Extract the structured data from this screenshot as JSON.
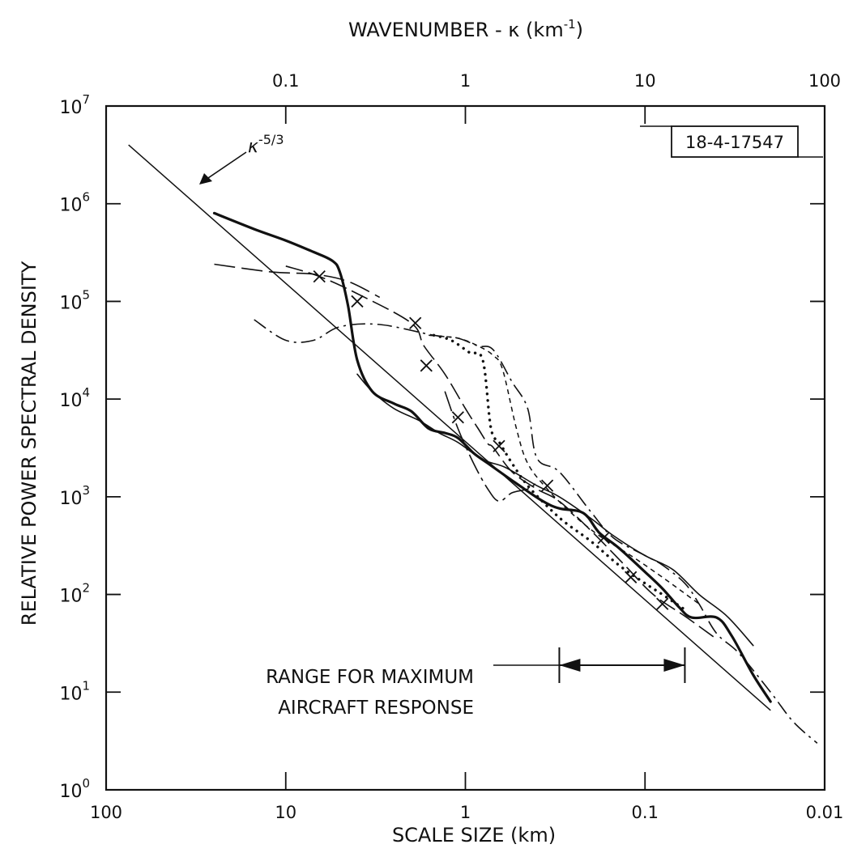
{
  "chart_data": {
    "type": "line",
    "title": "",
    "x_top_label": "WAVENUMBER - κ (km⁻¹)",
    "x_top_label_parts": {
      "main": "WAVENUMBER - κ (km",
      "sup": "-1",
      "close": ")"
    },
    "x_top_ticks": [
      "0.1",
      "1",
      "10",
      "100"
    ],
    "x_top_tick_values": [
      0.1,
      1,
      10,
      100
    ],
    "xlabel": "SCALE SIZE (km)",
    "x_bottom_ticks": [
      "100",
      "10",
      "1",
      "0.1",
      "0.01"
    ],
    "x_bottom_tick_values": [
      100,
      10,
      1,
      0.1,
      0.01
    ],
    "ylabel": "RELATIVE POWER SPECTRAL DENSITY",
    "y_ticks": [
      {
        "base": "10",
        "exp": "0"
      },
      {
        "base": "10",
        "exp": "1"
      },
      {
        "base": "10",
        "exp": "2"
      },
      {
        "base": "10",
        "exp": "3"
      },
      {
        "base": "10",
        "exp": "4"
      },
      {
        "base": "10",
        "exp": "5"
      },
      {
        "base": "10",
        "exp": "6"
      },
      {
        "base": "10",
        "exp": "7"
      }
    ],
    "x_scale": "log",
    "y_scale": "log",
    "xlim_km": [
      100,
      0.01
    ],
    "ylim": [
      1,
      10000000
    ],
    "figure_id": "18-4-17547",
    "annotations": {
      "reference_line": {
        "base": "κ",
        "exp": "-5/3",
        "from": [
          75,
          4000000
        ],
        "to": [
          0.02,
          6.5
        ]
      },
      "range": {
        "line1": "RANGE FOR MAXIMUM",
        "line2": "AIRCRAFT RESPONSE",
        "from_km": 0.3,
        "to_km": 0.06
      }
    },
    "series": [
      {
        "style": "solid-heavy",
        "points": [
          [
            25,
            800000
          ],
          [
            15,
            550000
          ],
          [
            10,
            420000
          ],
          [
            7,
            320000
          ],
          [
            5.5,
            260000
          ],
          [
            5,
            200000
          ],
          [
            4.5,
            90000
          ],
          [
            4,
            25000
          ],
          [
            3.3,
            12000
          ],
          [
            2.5,
            9000
          ],
          [
            2,
            7500
          ],
          [
            1.6,
            5000
          ],
          [
            1.3,
            4500
          ],
          [
            1.1,
            4000
          ],
          [
            0.9,
            2800
          ],
          [
            0.75,
            2200
          ],
          [
            0.5,
            1300
          ],
          [
            0.37,
            900
          ],
          [
            0.3,
            760
          ],
          [
            0.22,
            680
          ],
          [
            0.18,
            430
          ],
          [
            0.14,
            300
          ],
          [
            0.1,
            170
          ],
          [
            0.08,
            115
          ],
          [
            0.065,
            75
          ],
          [
            0.055,
            58
          ],
          [
            0.04,
            58
          ],
          [
            0.033,
            38
          ],
          [
            0.025,
            15
          ],
          [
            0.02,
            8
          ]
        ]
      },
      {
        "style": "solid-thin",
        "points": [
          [
            4,
            18000
          ],
          [
            3.3,
            12000
          ],
          [
            2.5,
            8000
          ],
          [
            1.8,
            6000
          ],
          [
            1.4,
            4500
          ],
          [
            1.1,
            3600
          ],
          [
            0.8,
            2400
          ],
          [
            0.6,
            2000
          ],
          [
            0.4,
            1300
          ],
          [
            0.3,
            1000
          ],
          [
            0.2,
            600
          ],
          [
            0.15,
            400
          ],
          [
            0.1,
            250
          ],
          [
            0.07,
            180
          ],
          [
            0.05,
            100
          ],
          [
            0.035,
            60
          ],
          [
            0.025,
            30
          ]
        ]
      },
      {
        "style": "dash-x",
        "marker": "x",
        "points": [
          [
            10,
            230000
          ],
          [
            6.5,
            180000
          ],
          [
            4,
            120000
          ],
          [
            2,
            60000
          ],
          [
            1.7,
            35000
          ],
          [
            1.3,
            18000
          ],
          [
            1,
            8000
          ],
          [
            0.85,
            5000
          ],
          [
            0.75,
            3500
          ],
          [
            0.7,
            3200
          ],
          [
            0.55,
            1800
          ],
          [
            0.4,
            1200
          ],
          [
            0.3,
            900
          ],
          [
            0.2,
            450
          ],
          [
            0.13,
            200
          ],
          [
            0.09,
            100
          ],
          [
            0.06,
            60
          ],
          [
            0.04,
            35
          ]
        ],
        "markers": [
          [
            6.5,
            180000
          ],
          [
            4,
            100000
          ],
          [
            1.9,
            60000
          ],
          [
            1.65,
            22000
          ],
          [
            1.1,
            6500
          ],
          [
            0.65,
            3300
          ],
          [
            0.35,
            1300
          ],
          [
            0.17,
            380
          ],
          [
            0.12,
            150
          ],
          [
            0.08,
            80
          ]
        ]
      },
      {
        "style": "dotted",
        "points": [
          [
            1.5,
            45000
          ],
          [
            1.2,
            40000
          ],
          [
            0.95,
            30000
          ],
          [
            0.8,
            25000
          ],
          [
            0.72,
            5000
          ],
          [
            0.64,
            3500
          ],
          [
            0.55,
            2200
          ],
          [
            0.45,
            1300
          ],
          [
            0.35,
            800
          ],
          [
            0.28,
            550
          ],
          [
            0.2,
            350
          ],
          [
            0.14,
            200
          ],
          [
            0.1,
            130
          ],
          [
            0.08,
            100
          ],
          [
            0.06,
            70
          ]
        ]
      },
      {
        "style": "short-dash",
        "points": [
          [
            1.6,
            45000
          ],
          [
            1.1,
            42000
          ],
          [
            0.85,
            35000
          ],
          [
            0.7,
            28000
          ],
          [
            0.62,
            20000
          ],
          [
            0.52,
            5000
          ],
          [
            0.45,
            2200
          ],
          [
            0.35,
            1200
          ],
          [
            0.25,
            650
          ],
          [
            0.18,
            400
          ],
          [
            0.12,
            250
          ],
          [
            0.08,
            150
          ],
          [
            0.05,
            80
          ]
        ]
      },
      {
        "style": "dash-dot",
        "points": [
          [
            15,
            65000
          ],
          [
            10,
            40000
          ],
          [
            7,
            40000
          ],
          [
            5,
            55000
          ],
          [
            3,
            58000
          ],
          [
            1.5,
            45000
          ],
          [
            1.1,
            42000
          ],
          [
            0.85,
            35000
          ],
          [
            0.7,
            32000
          ],
          [
            0.55,
            15000
          ],
          [
            0.45,
            8000
          ],
          [
            0.4,
            2500
          ],
          [
            0.3,
            1800
          ],
          [
            0.2,
            700
          ],
          [
            0.15,
            380
          ],
          [
            0.1,
            250
          ],
          [
            0.08,
            200
          ],
          [
            0.06,
            130
          ],
          [
            0.05,
            80
          ],
          [
            0.04,
            40
          ],
          [
            0.03,
            25
          ],
          [
            0.02,
            10
          ],
          [
            0.015,
            5
          ],
          [
            0.011,
            3
          ]
        ]
      },
      {
        "style": "long-dash-dot",
        "points": [
          [
            1.3,
            12000
          ],
          [
            1.1,
            5000
          ],
          [
            0.9,
            2200
          ],
          [
            0.75,
            1200
          ],
          [
            0.65,
            900
          ],
          [
            0.55,
            1100
          ],
          [
            0.45,
            1200
          ],
          [
            0.4,
            1400
          ]
        ]
      },
      {
        "style": "long-dash",
        "points": [
          [
            25,
            240000
          ],
          [
            12,
            200000
          ],
          [
            7,
            190000
          ],
          [
            4.5,
            160000
          ],
          [
            3,
            110000
          ]
        ]
      }
    ]
  }
}
